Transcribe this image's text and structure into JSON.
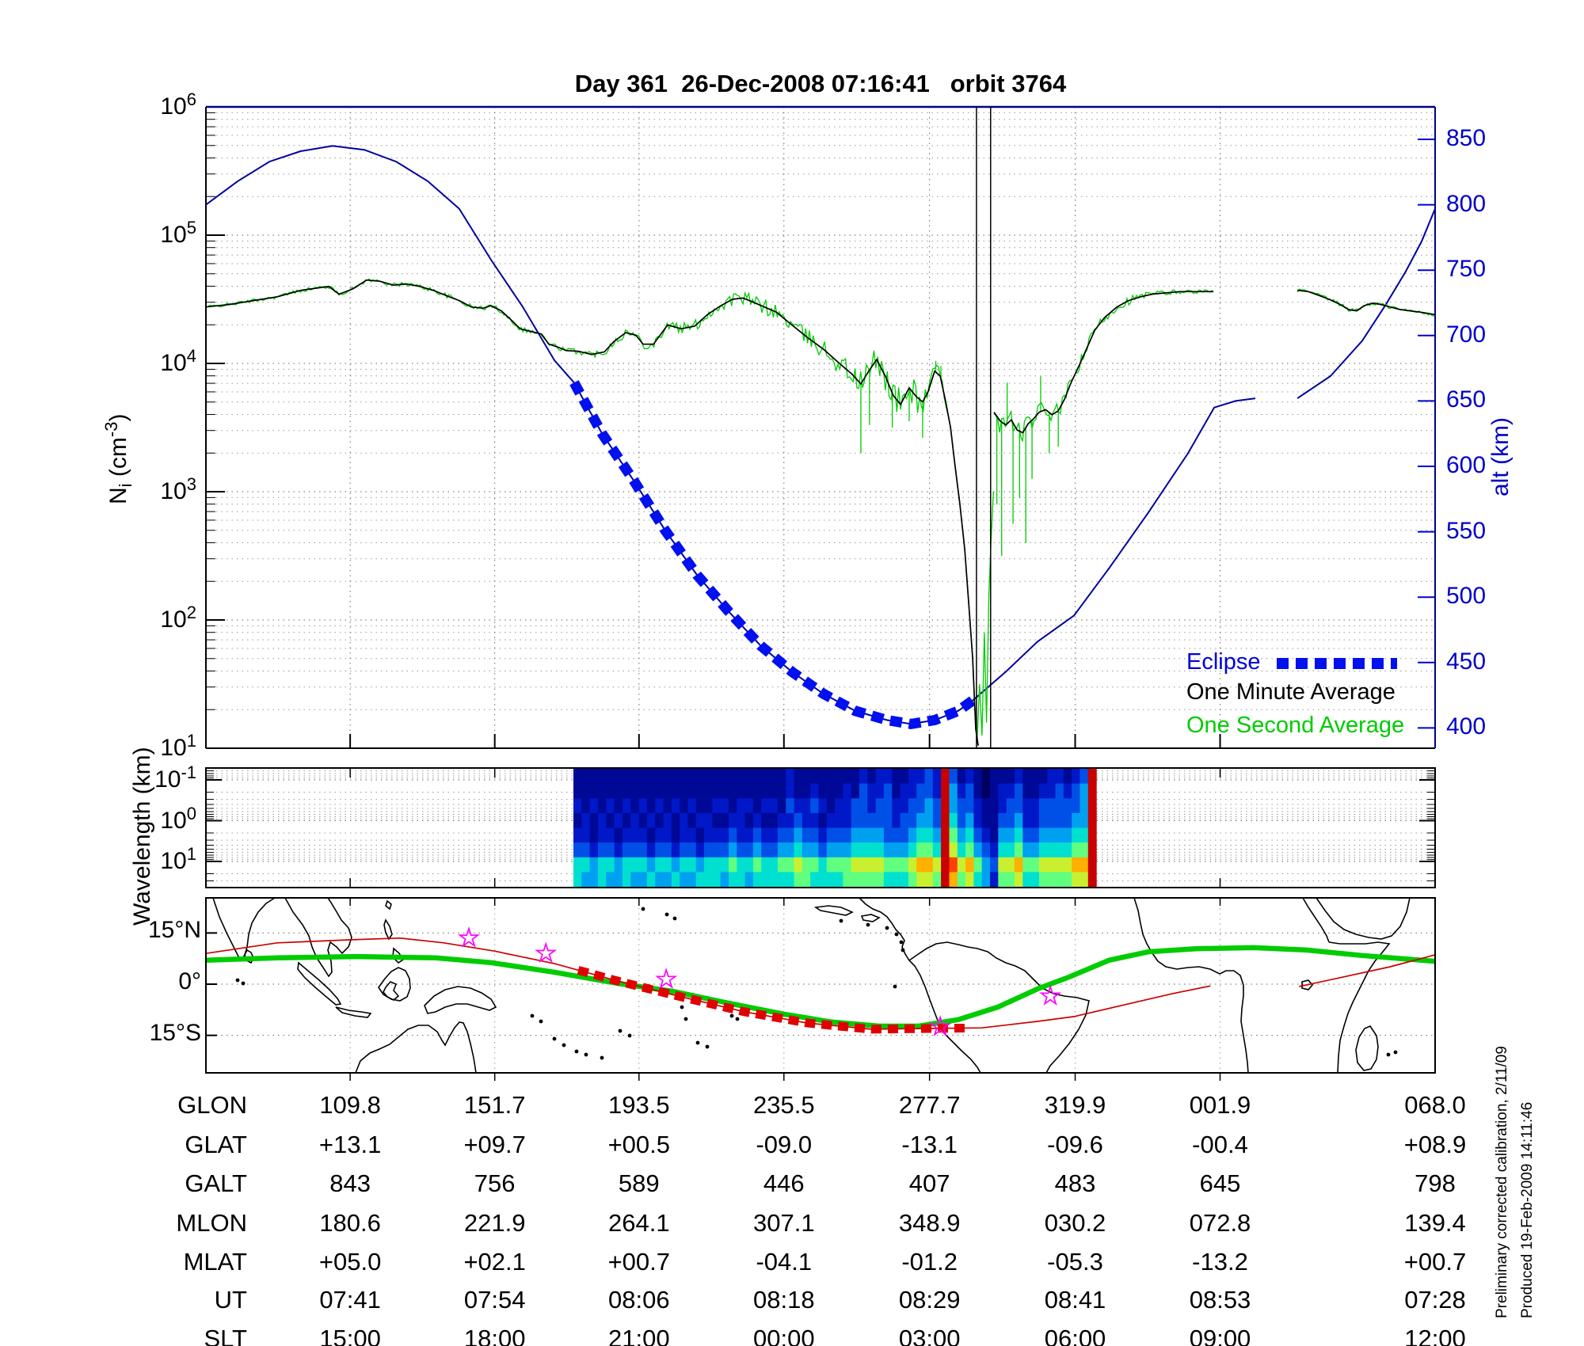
{
  "title": "Day 361  26-Dec-2008 07:16:41   orbit 3764",
  "colors": {
    "altitude_line": "#0000a0",
    "eclipse": "#0010ee",
    "one_minute": "#000000",
    "one_second": "#00cc00",
    "sat_track": "#cc0000",
    "eclipse_track": "#e00000",
    "dip_equator": "#00cc00",
    "star": "#ff00ff",
    "right_axis": "#0000cc",
    "frame_blue": "#00008b"
  },
  "top_plot": {
    "ylabel": {
      "base": "N",
      "sub": "i",
      "mid": " (cm",
      "exp": "-3",
      "close": ")"
    },
    "left_tick_exponents": [
      "6",
      "5",
      "4",
      "3",
      "2",
      "1"
    ],
    "right_label": "alt (km)",
    "right_ticks": [
      "850",
      "800",
      "750",
      "700",
      "650",
      "600",
      "550",
      "500",
      "450",
      "400"
    ],
    "legend": [
      {
        "label": "Eclipse",
        "color": "#0000dd",
        "swatch": "dashed-blue"
      },
      {
        "label": "One Minute Average",
        "color": "#000000",
        "swatch": "none"
      },
      {
        "label": "One Second Average",
        "color": "#00cc00",
        "swatch": "none"
      }
    ]
  },
  "middle_plot": {
    "ylabel": "Wavelength (km)",
    "left_tick_exponents": [
      "-1",
      "0",
      "1"
    ]
  },
  "map_panel": {
    "lat_labels": [
      "15°N",
      "0°",
      "15°S"
    ]
  },
  "table": {
    "rows": [
      {
        "label": "GLON",
        "values": [
          "109.8",
          "151.7",
          "193.5",
          "235.5",
          "277.7",
          "319.9",
          "001.9",
          "068.0"
        ]
      },
      {
        "label": "GLAT",
        "values": [
          "+13.1",
          "+09.7",
          "+00.5",
          "-09.0",
          "-13.1",
          "-09.6",
          "-00.4",
          "+08.9"
        ]
      },
      {
        "label": "GALT",
        "values": [
          "843",
          "756",
          "589",
          "446",
          "407",
          "483",
          "645",
          "798"
        ]
      },
      {
        "label": "MLON",
        "values": [
          "180.6",
          "221.9",
          "264.1",
          "307.1",
          "348.9",
          "030.2",
          "072.8",
          "139.4"
        ]
      },
      {
        "label": "MLAT",
        "values": [
          "+05.0",
          "+02.1",
          "+00.7",
          "-04.1",
          "-01.2",
          "-05.3",
          "-13.2",
          "+00.7"
        ]
      },
      {
        "label": "UT",
        "values": [
          "07:41",
          "07:54",
          "08:06",
          "08:18",
          "08:29",
          "08:41",
          "08:53",
          "07:28"
        ]
      },
      {
        "label": "SLT",
        "values": [
          "15:00",
          "18:00",
          "21:00",
          "00:00",
          "03:00",
          "06:00",
          "09:00",
          "12:00"
        ]
      }
    ]
  },
  "sidenote": [
    "Preliminary corrected calibration, 2/11/09",
    "Produced 19-Feb-2009 14:11:46"
  ],
  "chart_data": {
    "type": [
      "line",
      "heatmap",
      "map"
    ],
    "title": "Day 361  26-Dec-2008 07:16:41   orbit 3764",
    "x_axis": {
      "meaning": "geographic longitude along orbit, deg E unwrapped (equivalent to SLT 15:00..12:00 columns)",
      "xlim": [
        68.0,
        424.3
      ],
      "tick_glon": [
        109.8,
        151.7,
        193.5,
        235.5,
        277.7,
        319.9,
        361.9
      ],
      "last_column_at_right_edge": true
    },
    "density_panel": {
      "y_left": {
        "label": "Ni (cm^-3)",
        "scale": "log10",
        "ylim_exponents": [
          1,
          6
        ]
      },
      "y_right": {
        "label": "alt (km)",
        "ylim": [
          400,
          850
        ]
      },
      "altitude_km": [
        [
          68.0,
          800
        ],
        [
          77.2,
          818
        ],
        [
          86.4,
          833
        ],
        [
          95.5,
          841
        ],
        [
          104.7,
          845
        ],
        [
          113.9,
          842
        ],
        [
          123.1,
          833
        ],
        [
          132.3,
          818
        ],
        [
          141.4,
          797
        ],
        [
          150.6,
          758
        ],
        [
          159.8,
          722
        ],
        [
          169.0,
          681
        ],
        [
          174.7,
          664
        ],
        [
          182.8,
          625
        ],
        [
          192.0,
          589
        ],
        [
          201.1,
          551
        ],
        [
          210.3,
          517
        ],
        [
          219.5,
          489
        ],
        [
          228.7,
          463
        ],
        [
          237.8,
          443
        ],
        [
          247.0,
          426
        ],
        [
          256.2,
          413
        ],
        [
          265.4,
          406
        ],
        [
          272.3,
          403
        ],
        [
          279.2,
          406
        ],
        [
          286.0,
          413
        ],
        [
          290.2,
          421
        ],
        [
          299.8,
          443
        ],
        [
          309.0,
          466
        ],
        [
          319.6,
          486
        ],
        [
          329.7,
          522
        ],
        [
          341.2,
          565
        ],
        [
          352.6,
          610
        ],
        [
          360.2,
          645
        ],
        [
          366.4,
          650
        ],
        [
          372.1,
          652
        ]
      ],
      "altitude_wrap_segment_km": [
        [
          384.3,
          652
        ],
        [
          393.9,
          669
        ],
        [
          403.1,
          696
        ],
        [
          410.0,
          724
        ],
        [
          415.7,
          749
        ],
        [
          420.3,
          772
        ],
        [
          424.2,
          797
        ]
      ],
      "eclipse_glon_range": [
        174.7,
        290.2
      ],
      "data_gap_glon": [
        372.1,
        384.3
      ],
      "dropout_vlines_glon": [
        291.3,
        295.4
      ],
      "ni_minute_log10_segments": [
        [
          [
            68.0,
            4.44
          ],
          [
            74.9,
            4.46
          ],
          [
            81.8,
            4.49
          ],
          [
            88.7,
            4.52
          ],
          [
            95.5,
            4.57
          ],
          [
            103.6,
            4.6
          ],
          [
            106.6,
            4.54
          ],
          [
            110.5,
            4.58
          ],
          [
            114.6,
            4.65
          ],
          [
            118.5,
            4.64
          ],
          [
            122.4,
            4.61
          ],
          [
            126.1,
            4.62
          ],
          [
            130.0,
            4.6
          ],
          [
            133.9,
            4.57
          ],
          [
            138.5,
            4.52
          ],
          [
            141.4,
            4.49
          ],
          [
            144.9,
            4.44
          ],
          [
            148.3,
            4.43
          ],
          [
            150.6,
            4.45
          ],
          [
            153.6,
            4.41
          ],
          [
            156.8,
            4.33
          ],
          [
            159.1,
            4.27
          ],
          [
            162.1,
            4.25
          ],
          [
            165.1,
            4.23
          ],
          [
            167.4,
            4.15
          ],
          [
            169.7,
            4.13
          ],
          [
            172.4,
            4.1
          ],
          [
            175.9,
            4.095
          ],
          [
            179.8,
            4.07
          ],
          [
            183.5,
            4.09
          ],
          [
            186.2,
            4.17
          ],
          [
            189.7,
            4.24
          ],
          [
            192.6,
            4.22
          ],
          [
            194.7,
            4.15
          ],
          [
            197.7,
            4.15
          ],
          [
            201.8,
            4.3
          ],
          [
            205.7,
            4.27
          ],
          [
            209.6,
            4.29
          ],
          [
            213.3,
            4.38
          ],
          [
            217.2,
            4.45
          ],
          [
            220.6,
            4.5
          ],
          [
            223.6,
            4.51
          ],
          [
            226.4,
            4.48
          ],
          [
            229.8,
            4.44
          ],
          [
            233.3,
            4.4
          ],
          [
            237.8,
            4.3
          ],
          [
            242.4,
            4.2
          ],
          [
            247.0,
            4.11
          ],
          [
            251.6,
            4.0
          ],
          [
            255.1,
            3.92
          ],
          [
            257.8,
            3.84
          ],
          [
            260.3,
            3.95
          ],
          [
            262.4,
            4.03
          ],
          [
            264.9,
            3.9
          ],
          [
            267.2,
            3.75
          ],
          [
            269.3,
            3.68
          ],
          [
            271.8,
            3.81
          ],
          [
            273.9,
            3.74
          ],
          [
            275.7,
            3.7
          ],
          [
            277.3,
            3.78
          ],
          [
            279.2,
            3.94
          ],
          [
            280.8,
            3.9
          ],
          [
            282.4,
            3.7
          ],
          [
            283.8,
            3.5
          ],
          [
            285.1,
            3.2
          ],
          [
            286.5,
            2.9
          ],
          [
            287.9,
            2.55
          ],
          [
            289.0,
            2.15
          ],
          [
            290.2,
            1.7
          ],
          [
            291.1,
            1.15
          ],
          [
            291.8,
            1.02
          ]
        ],
        [
          [
            296.4,
            3.62
          ],
          [
            298.2,
            3.55
          ],
          [
            299.8,
            3.52
          ],
          [
            301.4,
            3.56
          ],
          [
            303.1,
            3.48
          ],
          [
            304.7,
            3.46
          ],
          [
            306.3,
            3.53
          ],
          [
            307.9,
            3.57
          ],
          [
            309.5,
            3.62
          ],
          [
            311.3,
            3.64
          ],
          [
            313.2,
            3.6
          ],
          [
            315.0,
            3.63
          ],
          [
            316.8,
            3.72
          ],
          [
            318.7,
            3.85
          ],
          [
            321.0,
            3.98
          ],
          [
            323.3,
            4.12
          ],
          [
            325.6,
            4.26
          ],
          [
            328.5,
            4.36
          ],
          [
            332.0,
            4.44
          ],
          [
            335.4,
            4.49
          ],
          [
            338.9,
            4.52
          ],
          [
            342.3,
            4.54
          ],
          [
            346.2,
            4.55
          ],
          [
            350.3,
            4.56
          ],
          [
            354.9,
            4.56
          ],
          [
            360.0,
            4.56
          ]
        ],
        [
          [
            384.3,
            4.57
          ],
          [
            387.5,
            4.56
          ],
          [
            390.5,
            4.53
          ],
          [
            393.5,
            4.5
          ],
          [
            396.7,
            4.46
          ],
          [
            399.2,
            4.42
          ],
          [
            401.5,
            4.41
          ],
          [
            403.6,
            4.45
          ],
          [
            406.1,
            4.47
          ],
          [
            408.4,
            4.46
          ],
          [
            411.2,
            4.44
          ],
          [
            414.1,
            4.42
          ],
          [
            416.9,
            4.41
          ],
          [
            419.9,
            4.4
          ],
          [
            422.2,
            4.39
          ],
          [
            424.2,
            4.38
          ]
        ]
      ],
      "ni_second_noise_amp_log10": [
        [
          68,
          0.012
        ],
        [
          170,
          0.02
        ],
        [
          215,
          0.05
        ],
        [
          245,
          0.07
        ],
        [
          255,
          0.1
        ],
        [
          276,
          0.13
        ],
        [
          283,
          0.02
        ],
        [
          292,
          0.0
        ],
        [
          296,
          0.1
        ],
        [
          320,
          0.05
        ],
        [
          340,
          0.03
        ],
        [
          352,
          0.015
        ],
        [
          424,
          0.015
        ]
      ],
      "ni_second_spikes_log10": [
        [
          257.8,
          3.3
        ],
        [
          260.3,
          3.52
        ],
        [
          266.9,
          3.5
        ],
        [
          271.8,
          3.55
        ],
        [
          275.7,
          3.42
        ],
        [
          279.5,
          4.02
        ],
        [
          281.0,
          3.98
        ],
        [
          297.2,
          2.9
        ],
        [
          298.6,
          2.5
        ],
        [
          300.2,
          3.85
        ],
        [
          301.9,
          2.75
        ],
        [
          303.8,
          2.95
        ],
        [
          305.6,
          2.6
        ],
        [
          307.4,
          3.1
        ],
        [
          309.9,
          3.9
        ],
        [
          312.4,
          3.3
        ],
        [
          315.0,
          3.35
        ]
      ],
      "ni_second_bubble_trace_log10": [
        [
          291.5,
          1.05
        ],
        [
          292.2,
          1.5
        ],
        [
          292.9,
          1.1
        ],
        [
          293.6,
          1.9
        ],
        [
          294.2,
          1.2
        ],
        [
          294.9,
          2.2
        ],
        [
          295.5,
          2.6
        ],
        [
          296.2,
          3.0
        ]
      ]
    },
    "spectrogram": {
      "ylabel": "Wavelength (km)",
      "y_scale": "log10 km, inverted (10^-1 top .. 10^1 bottom)",
      "ylim_exponents": [
        -1.33,
        1.64
      ],
      "x_glon_range": [
        174.5,
        326.0
      ],
      "rows": 8,
      "cols": 64,
      "intensity_0to10": [
        "111111111111111111111111112111111112122112232a31210111211122123a",
        "111111111111111111111111112112111213223122332a42310122311223234a",
        "212121212121212112212212213223212233233223343a43321123322333334a",
        "121212121212121221122121122322122233333233443a53421133422333344a",
        "221221222122122122232232233433233344443334554a64532144533444455a",
        "332332333233233233343343344544344455554445665a75643255644555566a",
        "554554555455455455565565566766566677776667887a97864377866777788a",
        "544544544544544555455455555665555666665556776a86754266755666677a"
      ],
      "palette": [
        "#000060",
        "#000896",
        "#0018c8",
        "#0050e8",
        "#00a0f0",
        "#00e0d0",
        "#60ff80",
        "#c8f030",
        "#ffb000",
        "#ff4000",
        "#c80000"
      ]
    },
    "map": {
      "ylim_lat": [
        -26,
        25.5
      ],
      "lat_gridlines": [
        15,
        0,
        -15
      ],
      "dip_equator_lonlat": [
        [
          68.0,
          7.0
        ],
        [
          88.7,
          7.7
        ],
        [
          111.6,
          8.1
        ],
        [
          134.6,
          7.7
        ],
        [
          150.6,
          6.3
        ],
        [
          169.0,
          3.5
        ],
        [
          187.4,
          0.2
        ],
        [
          203.4,
          -2.1
        ],
        [
          219.5,
          -5.6
        ],
        [
          235.6,
          -8.8
        ],
        [
          249.3,
          -11.1
        ],
        [
          263.1,
          -12.3
        ],
        [
          274.6,
          -12.3
        ],
        [
          286.0,
          -10.4
        ],
        [
          297.5,
          -6.7
        ],
        [
          309.0,
          -1.4
        ],
        [
          318.2,
          2.1
        ],
        [
          329.7,
          7.0
        ],
        [
          341.2,
          9.5
        ],
        [
          354.9,
          10.4
        ],
        [
          371.7,
          10.7
        ],
        [
          387.0,
          10.0
        ],
        [
          403.1,
          8.4
        ],
        [
          424.2,
          6.7
        ]
      ],
      "sat_track_lonlat_segments": [
        [
          [
            68.0,
            9.0
          ],
          [
            88.7,
            12.1
          ],
          [
            109.5,
            13.0
          ],
          [
            124.2,
            13.5
          ],
          [
            136.9,
            12.1
          ],
          [
            151.6,
            9.7
          ],
          [
            169.0,
            6.0
          ],
          [
            187.4,
            0.9
          ],
          [
            205.7,
            -3.7
          ],
          [
            224.1,
            -8.1
          ],
          [
            242.4,
            -11.4
          ],
          [
            260.8,
            -13.2
          ],
          [
            276.9,
            -13.0
          ],
          [
            292.9,
            -12.8
          ],
          [
            309.0,
            -10.9
          ],
          [
            319.6,
            -9.5
          ],
          [
            334.3,
            -6.0
          ],
          [
            348.0,
            -2.8
          ],
          [
            359.1,
            -0.5
          ]
        ],
        [
          [
            384.8,
            -0.7
          ],
          [
            398.5,
            2.3
          ],
          [
            411.2,
            5.1
          ],
          [
            424.2,
            8.6
          ]
        ]
      ],
      "eclipse_track_glon_range": [
        175.9,
        289.8
      ],
      "stars_lonlat": [
        [
          144.2,
          13.5
        ],
        [
          166.5,
          9.0
        ],
        [
          201.4,
          1.4
        ],
        [
          280.8,
          -12.5
        ],
        [
          312.7,
          -3.5
        ]
      ]
    }
  }
}
